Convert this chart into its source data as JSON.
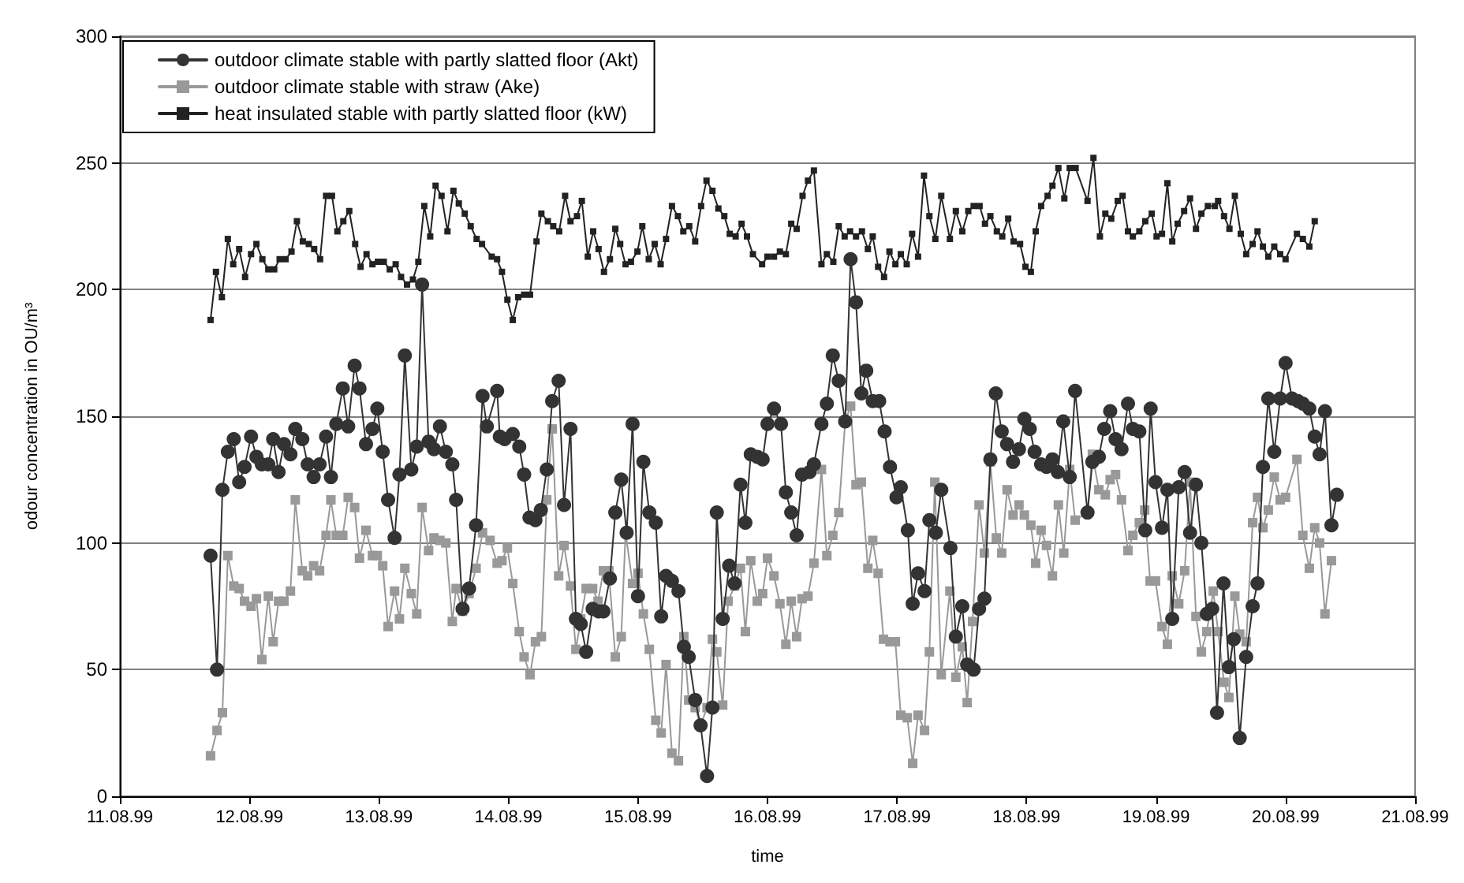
{
  "chart_data": {
    "type": "line",
    "xlabel": "time",
    "ylabel": "odour concentration in OU/m³",
    "xlim": [
      "1999-08-11",
      "1999-08-21"
    ],
    "xticks": [
      {
        "value": "1999-08-11",
        "label": "11.08.99"
      },
      {
        "value": "1999-08-12",
        "label": "12.08.99"
      },
      {
        "value": "1999-08-13",
        "label": "13.08.99"
      },
      {
        "value": "1999-08-14",
        "label": "14.08.99"
      },
      {
        "value": "1999-08-15",
        "label": "15.08.99"
      },
      {
        "value": "1999-08-16",
        "label": "16.08.99"
      },
      {
        "value": "1999-08-17",
        "label": "17.08.99"
      },
      {
        "value": "1999-08-18",
        "label": "18.08.99"
      },
      {
        "value": "1999-08-19",
        "label": "19.08.99"
      },
      {
        "value": "1999-08-20",
        "label": "20.08.99"
      },
      {
        "value": "1999-08-21",
        "label": "21.08.99"
      }
    ],
    "ylim": [
      0,
      300
    ],
    "yticks": [
      0,
      50,
      100,
      150,
      200,
      250,
      300
    ],
    "grid": "y",
    "legend": "top left",
    "series": [
      {
        "name": "outdoor climate stable with partly slatted floor (Akt)",
        "color": "#333333",
        "marker": "circle",
        "x": [
          "1999-08-11T16:48",
          "1999-08-11T18:00",
          "1999-08-11T19:00",
          "1999-08-11T20:00",
          "1999-08-11T21:06",
          "1999-08-11T22:06",
          "1999-08-11T23:06",
          "1999-08-12T00:18",
          "1999-08-12T01:18",
          "1999-08-12T02:18",
          "1999-08-12T03:30",
          "1999-08-12T04:24",
          "1999-08-12T05:24",
          "1999-08-12T06:24",
          "1999-08-12T07:36",
          "1999-08-12T08:30",
          "1999-08-12T09:48",
          "1999-08-12T10:48",
          "1999-08-12T11:54",
          "1999-08-12T13:00",
          "1999-08-12T14:12",
          "1999-08-12T15:06",
          "1999-08-12T16:06",
          "1999-08-12T17:18",
          "1999-08-12T18:18",
          "1999-08-12T19:30",
          "1999-08-12T20:24",
          "1999-08-12T21:36",
          "1999-08-12T22:48",
          "1999-08-12T23:42",
          "1999-08-13T00:42",
          "1999-08-13T01:42",
          "1999-08-13T02:54",
          "1999-08-13T03:48",
          "1999-08-13T04:48",
          "1999-08-13T06:00",
          "1999-08-13T07:00",
          "1999-08-13T08:00",
          "1999-08-13T09:12",
          "1999-08-13T10:12",
          "1999-08-13T11:18",
          "1999-08-13T12:24",
          "1999-08-13T13:36",
          "1999-08-13T14:18",
          "1999-08-13T15:30",
          "1999-08-13T16:42",
          "1999-08-13T18:00",
          "1999-08-13T19:12",
          "1999-08-13T20:00",
          "1999-08-13T21:54",
          "1999-08-13T22:24",
          "1999-08-13T23:18",
          "1999-08-14T00:48",
          "1999-08-14T02:00",
          "1999-08-14T02:54",
          "1999-08-14T03:54",
          "1999-08-14T05:00",
          "1999-08-14T06:00",
          "1999-08-14T07:06",
          "1999-08-14T08:06",
          "1999-08-14T09:18",
          "1999-08-14T10:18",
          "1999-08-14T11:30",
          "1999-08-14T12:30",
          "1999-08-14T13:24",
          "1999-08-14T14:24",
          "1999-08-14T15:36",
          "1999-08-14T16:42",
          "1999-08-14T17:36",
          "1999-08-14T18:48",
          "1999-08-14T19:48",
          "1999-08-14T20:54",
          "1999-08-14T21:54",
          "1999-08-14T23:00",
          "1999-08-15T00:00",
          "1999-08-15T01:00",
          "1999-08-15T02:06",
          "1999-08-15T03:18",
          "1999-08-15T04:18",
          "1999-08-15T05:12",
          "1999-08-15T06:18",
          "1999-08-15T07:30",
          "1999-08-15T08:30",
          "1999-08-15T09:24",
          "1999-08-15T10:36",
          "1999-08-15T11:36",
          "1999-08-15T12:48",
          "1999-08-15T13:48",
          "1999-08-15T14:36",
          "1999-08-15T15:42",
          "1999-08-15T16:54",
          "1999-08-15T17:54",
          "1999-08-15T19:00",
          "1999-08-15T19:54",
          "1999-08-15T20:54",
          "1999-08-15T22:06",
          "1999-08-15T23:06",
          "1999-08-16T00:00",
          "1999-08-16T01:12",
          "1999-08-16T02:30",
          "1999-08-16T03:24",
          "1999-08-16T04:24",
          "1999-08-16T05:24",
          "1999-08-16T06:24",
          "1999-08-16T07:48",
          "1999-08-16T08:36",
          "1999-08-16T10:00",
          "1999-08-16T11:00",
          "1999-08-16T12:06",
          "1999-08-16T13:12",
          "1999-08-16T14:24",
          "1999-08-16T15:24",
          "1999-08-16T16:24",
          "1999-08-16T17:24",
          "1999-08-16T18:18",
          "1999-08-16T19:30",
          "1999-08-16T20:42",
          "1999-08-16T21:42",
          "1999-08-16T22:42",
          "1999-08-16T23:54",
          "1999-08-17T00:42",
          "1999-08-17T02:00",
          "1999-08-17T02:54",
          "1999-08-17T03:54",
          "1999-08-17T05:06",
          "1999-08-17T06:00",
          "1999-08-17T07:12",
          "1999-08-17T08:12",
          "1999-08-17T09:54",
          "1999-08-17T10:54",
          "1999-08-17T12:06",
          "1999-08-17T13:00",
          "1999-08-17T14:12",
          "1999-08-17T15:12",
          "1999-08-17T16:12",
          "1999-08-17T17:18",
          "1999-08-17T18:18",
          "1999-08-17T19:24",
          "1999-08-17T20:24",
          "1999-08-17T21:30",
          "1999-08-17T22:36",
          "1999-08-17T23:36",
          "1999-08-18T00:36",
          "1999-08-18T01:30",
          "1999-08-18T02:42",
          "1999-08-18T03:42",
          "1999-08-18T04:48",
          "1999-08-18T05:48",
          "1999-08-18T06:48",
          "1999-08-18T08:00",
          "1999-08-18T09:00",
          "1999-08-18T11:18",
          "1999-08-18T12:12",
          "1999-08-18T13:24",
          "1999-08-18T14:24",
          "1999-08-18T15:30",
          "1999-08-18T16:30",
          "1999-08-18T17:36",
          "1999-08-18T18:48",
          "1999-08-18T19:42",
          "1999-08-18T20:54",
          "1999-08-18T22:00",
          "1999-08-18T23:00",
          "1999-08-18T23:54",
          "1999-08-19T01:06",
          "1999-08-19T02:06",
          "1999-08-19T03:00",
          "1999-08-19T04:12",
          "1999-08-19T05:18",
          "1999-08-19T06:18",
          "1999-08-19T07:24",
          "1999-08-19T08:24",
          "1999-08-19T09:24",
          "1999-08-19T10:24",
          "1999-08-19T11:18",
          "1999-08-19T12:30",
          "1999-08-19T13:30",
          "1999-08-19T14:24",
          "1999-08-19T15:30",
          "1999-08-19T16:42",
          "1999-08-19T17:54",
          "1999-08-19T18:48",
          "1999-08-19T19:48",
          "1999-08-19T20:48",
          "1999-08-19T21:54",
          "1999-08-19T23:00",
          "1999-08-20T00:00",
          "1999-08-20T01:12",
          "1999-08-20T02:18",
          "1999-08-20T03:12",
          "1999-08-20T04:24",
          "1999-08-20T05:24",
          "1999-08-20T06:18",
          "1999-08-20T07:18",
          "1999-08-20T08:30",
          "1999-08-20T09:30"
        ],
        "values": [
          95,
          50,
          121,
          136,
          141,
          124,
          130,
          142,
          134,
          131,
          131,
          141,
          128,
          139,
          135,
          145,
          141,
          131,
          126,
          131,
          142,
          126,
          147,
          161,
          146,
          170,
          161,
          139,
          145,
          153,
          136,
          117,
          102,
          127,
          174,
          129,
          138,
          202,
          140,
          137,
          146,
          136,
          131,
          117,
          74,
          82,
          107,
          158,
          146,
          160,
          142,
          141,
          143,
          138,
          127,
          110,
          109,
          113,
          129,
          156,
          164,
          115,
          145,
          70,
          68,
          57,
          74,
          73,
          73,
          86,
          112,
          125,
          104,
          147,
          79,
          132,
          112,
          108,
          71,
          87,
          85,
          81,
          59,
          55,
          38,
          28,
          8,
          35,
          112,
          70,
          91,
          84,
          123,
          108,
          135,
          134,
          133,
          147,
          153,
          147,
          120,
          112,
          103,
          127,
          128,
          131,
          147,
          155,
          174,
          164,
          148,
          212,
          195,
          159,
          168,
          156,
          156,
          144,
          130,
          118,
          122,
          105,
          76,
          88,
          81,
          109,
          104,
          121,
          98,
          63,
          75,
          52,
          50,
          74,
          78,
          133,
          159,
          144,
          139,
          132,
          137,
          149,
          145,
          136,
          131,
          130,
          133,
          128,
          148,
          126,
          160,
          112,
          132,
          134,
          145,
          152,
          141,
          137,
          155,
          145,
          144,
          105,
          153,
          124,
          106,
          121,
          70,
          122,
          128,
          104,
          123,
          100,
          72,
          74,
          33,
          84,
          51,
          62,
          23,
          55,
          75,
          84,
          130,
          157,
          136,
          157,
          171,
          157,
          156,
          155,
          153,
          142,
          135,
          152,
          107,
          119
        ]
      },
      {
        "name": "outdoor climate stable with straw (Ake)",
        "color": "#999999",
        "marker": "square",
        "x": [
          "1999-08-11T16:48",
          "1999-08-11T18:00",
          "1999-08-11T19:00",
          "1999-08-11T20:00",
          "1999-08-11T21:06",
          "1999-08-11T22:06",
          "1999-08-11T23:06",
          "1999-08-12T00:18",
          "1999-08-12T01:18",
          "1999-08-12T02:18",
          "1999-08-12T03:30",
          "1999-08-12T04:24",
          "1999-08-12T05:24",
          "1999-08-12T06:24",
          "1999-08-12T07:36",
          "1999-08-12T08:30",
          "1999-08-12T09:48",
          "1999-08-12T10:48",
          "1999-08-12T11:54",
          "1999-08-12T13:00",
          "1999-08-12T14:12",
          "1999-08-12T15:06",
          "1999-08-12T16:06",
          "1999-08-12T17:18",
          "1999-08-12T18:18",
          "1999-08-12T19:30",
          "1999-08-12T20:24",
          "1999-08-12T21:36",
          "1999-08-12T22:48",
          "1999-08-12T23:42",
          "1999-08-13T00:42",
          "1999-08-13T01:42",
          "1999-08-13T02:54",
          "1999-08-13T03:48",
          "1999-08-13T04:48",
          "1999-08-13T06:00",
          "1999-08-13T07:00",
          "1999-08-13T08:00",
          "1999-08-13T09:12",
          "1999-08-13T10:12",
          "1999-08-13T11:18",
          "1999-08-13T12:24",
          "1999-08-13T13:36",
          "1999-08-13T14:18",
          "1999-08-13T15:30",
          "1999-08-13T16:42",
          "1999-08-13T18:00",
          "1999-08-13T19:12",
          "1999-08-13T20:36",
          "1999-08-13T21:54",
          "1999-08-13T22:48",
          "1999-08-13T23:48",
          "1999-08-14T00:48",
          "1999-08-14T02:00",
          "1999-08-14T02:54",
          "1999-08-14T04:00",
          "1999-08-14T05:00",
          "1999-08-14T06:06",
          "1999-08-14T07:06",
          "1999-08-14T08:06",
          "1999-08-14T09:18",
          "1999-08-14T10:18",
          "1999-08-14T11:30",
          "1999-08-14T12:30",
          "1999-08-14T13:24",
          "1999-08-14T14:24",
          "1999-08-14T15:36",
          "1999-08-14T16:36",
          "1999-08-14T17:36",
          "1999-08-14T18:36",
          "1999-08-14T19:48",
          "1999-08-14T20:54",
          "1999-08-14T21:42",
          "1999-08-14T23:00",
          "1999-08-15T00:00",
          "1999-08-15T01:00",
          "1999-08-15T02:06",
          "1999-08-15T03:18",
          "1999-08-15T04:18",
          "1999-08-15T05:12",
          "1999-08-15T06:18",
          "1999-08-15T07:30",
          "1999-08-15T08:30",
          "1999-08-15T09:24",
          "1999-08-15T10:36",
          "1999-08-15T11:36",
          "1999-08-15T12:48",
          "1999-08-15T13:48",
          "1999-08-15T14:36",
          "1999-08-15T15:42",
          "1999-08-15T16:42",
          "1999-08-15T17:54",
          "1999-08-15T19:00",
          "1999-08-15T19:54",
          "1999-08-15T20:54",
          "1999-08-15T22:06",
          "1999-08-15T23:06",
          "1999-08-16T00:00",
          "1999-08-16T01:12",
          "1999-08-16T02:18",
          "1999-08-16T03:24",
          "1999-08-16T04:24",
          "1999-08-16T05:24",
          "1999-08-16T06:24",
          "1999-08-16T07:30",
          "1999-08-16T08:36",
          "1999-08-16T10:00",
          "1999-08-16T11:00",
          "1999-08-16T12:06",
          "1999-08-16T13:12",
          "1999-08-16T14:24",
          "1999-08-16T15:24",
          "1999-08-16T16:24",
          "1999-08-16T17:24",
          "1999-08-16T18:36",
          "1999-08-16T19:30",
          "1999-08-16T20:30",
          "1999-08-16T21:30",
          "1999-08-16T22:42",
          "1999-08-16T23:42",
          "1999-08-17T00:42",
          "1999-08-17T01:54",
          "1999-08-17T02:54",
          "1999-08-17T03:54",
          "1999-08-17T05:06",
          "1999-08-17T06:00",
          "1999-08-17T07:00",
          "1999-08-17T08:12",
          "1999-08-17T09:48",
          "1999-08-17T10:54",
          "1999-08-17T12:06",
          "1999-08-17T13:00",
          "1999-08-17T14:00",
          "1999-08-17T15:12",
          "1999-08-17T16:12",
          "1999-08-17T17:18",
          "1999-08-17T18:24",
          "1999-08-17T19:24",
          "1999-08-17T20:24",
          "1999-08-17T21:30",
          "1999-08-17T22:36",
          "1999-08-17T23:36",
          "1999-08-18T00:48",
          "1999-08-18T01:42",
          "1999-08-18T02:42",
          "1999-08-18T03:42",
          "1999-08-18T04:48",
          "1999-08-18T05:54",
          "1999-08-18T06:54",
          "1999-08-18T08:00",
          "1999-08-18T09:00",
          "1999-08-18T11:18",
          "1999-08-18T12:12",
          "1999-08-18T13:24",
          "1999-08-18T14:36",
          "1999-08-18T15:30",
          "1999-08-18T16:30",
          "1999-08-18T17:36",
          "1999-08-18T18:48",
          "1999-08-18T19:42",
          "1999-08-18T20:54",
          "1999-08-18T21:54",
          "1999-08-18T22:54",
          "1999-08-18T23:54",
          "1999-08-19T01:06",
          "1999-08-19T02:06",
          "1999-08-19T03:00",
          "1999-08-19T04:12",
          "1999-08-19T05:18",
          "1999-08-19T06:18",
          "1999-08-19T07:24",
          "1999-08-19T08:24",
          "1999-08-19T09:24",
          "1999-08-19T10:36",
          "1999-08-19T11:30",
          "1999-08-19T12:36",
          "1999-08-19T13:30",
          "1999-08-19T14:36",
          "1999-08-19T15:30",
          "1999-08-19T16:42",
          "1999-08-19T17:54",
          "1999-08-19T18:48",
          "1999-08-19T19:48",
          "1999-08-19T20:48",
          "1999-08-19T21:54",
          "1999-08-19T23:00",
          "1999-08-20T00:00",
          "1999-08-20T02:06",
          "1999-08-20T03:12",
          "1999-08-20T04:24",
          "1999-08-20T05:24",
          "1999-08-20T06:18",
          "1999-08-20T07:18",
          "1999-08-20T08:30"
        ],
        "values": [
          16,
          26,
          33,
          95,
          83,
          82,
          77,
          75,
          78,
          54,
          79,
          61,
          77,
          77,
          81,
          117,
          89,
          87,
          91,
          89,
          103,
          117,
          103,
          103,
          118,
          114,
          94,
          105,
          95,
          95,
          91,
          67,
          81,
          70,
          90,
          80,
          72,
          114,
          97,
          102,
          101,
          100,
          69,
          82,
          73,
          80,
          90,
          104,
          101,
          92,
          93,
          98,
          84,
          65,
          55,
          48,
          61,
          63,
          117,
          145,
          87,
          99,
          83,
          58,
          70,
          82,
          82,
          77,
          89,
          89,
          55,
          63,
          104,
          84,
          88,
          72,
          58,
          30,
          25,
          52,
          17,
          14,
          63,
          38,
          35,
          28,
          35,
          62,
          57,
          36,
          77,
          83,
          90,
          65,
          93,
          77,
          80,
          94,
          87,
          76,
          60,
          77,
          63,
          78,
          79,
          92,
          129,
          95,
          103,
          112,
          148,
          154,
          123,
          124,
          90,
          101,
          88,
          62,
          61,
          61,
          32,
          31,
          13,
          32,
          26,
          57,
          124,
          48,
          81,
          47,
          59,
          37,
          69,
          115,
          96,
          132,
          102,
          96,
          121,
          111,
          115,
          111,
          107,
          92,
          105,
          99,
          87,
          115,
          96,
          129,
          109,
          112,
          135,
          121,
          119,
          125,
          127,
          117,
          97,
          103,
          108,
          113,
          85,
          85,
          67,
          60,
          87,
          76,
          89,
          124,
          71,
          57,
          65,
          81,
          65,
          45,
          39,
          79,
          64,
          61,
          108,
          118,
          106,
          113,
          126,
          117,
          118,
          133,
          103,
          90,
          106,
          100,
          72,
          93
        ]
      },
      {
        "name": "heat insulated stable with partly slatted floor (kW)",
        "color": "#222222",
        "marker": "square",
        "x": [
          "1999-08-11T16:48",
          "1999-08-11T17:48",
          "1999-08-11T18:54",
          "1999-08-11T20:00",
          "1999-08-11T21:00",
          "1999-08-11T22:06",
          "1999-08-11T23:12",
          "1999-08-12T00:18",
          "1999-08-12T01:18",
          "1999-08-12T02:24",
          "1999-08-12T03:30",
          "1999-08-12T04:36",
          "1999-08-12T05:36",
          "1999-08-12T06:42",
          "1999-08-12T07:48",
          "1999-08-12T08:48",
          "1999-08-12T09:54",
          "1999-08-12T11:00",
          "1999-08-12T12:00",
          "1999-08-12T13:06",
          "1999-08-12T14:12",
          "1999-08-12T15:18",
          "1999-08-12T16:18",
          "1999-08-12T17:24",
          "1999-08-12T18:30",
          "1999-08-12T19:36",
          "1999-08-12T20:36",
          "1999-08-12T21:42",
          "1999-08-12T22:48",
          "1999-08-12T23:48",
          "1999-08-13T00:54",
          "1999-08-13T02:00",
          "1999-08-13T03:06",
          "1999-08-13T04:06",
          "1999-08-13T05:12",
          "1999-08-13T06:18",
          "1999-08-13T07:18",
          "1999-08-13T08:24",
          "1999-08-13T09:30",
          "1999-08-13T10:30",
          "1999-08-13T11:36",
          "1999-08-13T12:42",
          "1999-08-13T13:48",
          "1999-08-13T14:48",
          "1999-08-13T15:54",
          "1999-08-13T17:00",
          "1999-08-13T18:06",
          "1999-08-13T19:06",
          "1999-08-13T20:54",
          "1999-08-13T21:54",
          "1999-08-13T22:48",
          "1999-08-13T23:48",
          "1999-08-14T00:48",
          "1999-08-14T01:48",
          "1999-08-14T02:54",
          "1999-08-14T04:00",
          "1999-08-14T05:12",
          "1999-08-14T06:06",
          "1999-08-14T07:18",
          "1999-08-14T08:18",
          "1999-08-14T09:24",
          "1999-08-14T10:30",
          "1999-08-14T11:30",
          "1999-08-14T12:42",
          "1999-08-14T13:36",
          "1999-08-14T14:42",
          "1999-08-14T15:42",
          "1999-08-14T16:42",
          "1999-08-14T17:42",
          "1999-08-14T18:48",
          "1999-08-14T19:48",
          "1999-08-14T20:42",
          "1999-08-14T21:42",
          "1999-08-14T22:42",
          "1999-08-14T23:54",
          "1999-08-15T00:48",
          "1999-08-15T02:00",
          "1999-08-15T03:06",
          "1999-08-15T04:12",
          "1999-08-15T05:12",
          "1999-08-15T06:18",
          "1999-08-15T07:24",
          "1999-08-15T08:24",
          "1999-08-15T09:30",
          "1999-08-15T10:36",
          "1999-08-15T11:42",
          "1999-08-15T12:42",
          "1999-08-15T13:48",
          "1999-08-15T14:54",
          "1999-08-15T16:00",
          "1999-08-15T17:00",
          "1999-08-15T18:06",
          "1999-08-15T19:12",
          "1999-08-15T20:12",
          "1999-08-15T21:18",
          "1999-08-15T23:00",
          "1999-08-16T00:00",
          "1999-08-16T01:12",
          "1999-08-16T02:18",
          "1999-08-16T03:24",
          "1999-08-16T04:24",
          "1999-08-16T05:24",
          "1999-08-16T06:30",
          "1999-08-16T07:30",
          "1999-08-16T08:36",
          "1999-08-16T10:00",
          "1999-08-16T11:00",
          "1999-08-16T12:12",
          "1999-08-16T13:12",
          "1999-08-16T14:18",
          "1999-08-16T15:18",
          "1999-08-16T16:24",
          "1999-08-16T17:30",
          "1999-08-16T18:36",
          "1999-08-16T19:30",
          "1999-08-16T20:30",
          "1999-08-16T21:36",
          "1999-08-16T22:36",
          "1999-08-16T23:42",
          "1999-08-17T00:42",
          "1999-08-17T01:48",
          "1999-08-17T02:48",
          "1999-08-17T03:54",
          "1999-08-17T05:00",
          "1999-08-17T06:00",
          "1999-08-17T07:06",
          "1999-08-17T08:12",
          "1999-08-17T09:48",
          "1999-08-17T10:54",
          "1999-08-17T12:06",
          "1999-08-17T13:12",
          "1999-08-17T14:12",
          "1999-08-17T15:18",
          "1999-08-17T16:18",
          "1999-08-17T17:18",
          "1999-08-17T18:30",
          "1999-08-17T19:30",
          "1999-08-17T20:36",
          "1999-08-17T21:36",
          "1999-08-17T22:48",
          "1999-08-17T23:48",
          "1999-08-18T00:48",
          "1999-08-18T01:42",
          "1999-08-18T02:42",
          "1999-08-18T03:54",
          "1999-08-18T04:48",
          "1999-08-18T05:54",
          "1999-08-18T07:00",
          "1999-08-18T08:00",
          "1999-08-18T09:06",
          "1999-08-18T11:18",
          "1999-08-18T12:24",
          "1999-08-18T13:36",
          "1999-08-18T14:36",
          "1999-08-18T15:42",
          "1999-08-18T16:54",
          "1999-08-18T17:48",
          "1999-08-18T18:48",
          "1999-08-18T19:42",
          "1999-08-18T20:54",
          "1999-08-18T22:00",
          "1999-08-18T23:12",
          "1999-08-19T00:06",
          "1999-08-19T01:06",
          "1999-08-19T02:06",
          "1999-08-19T03:00",
          "1999-08-19T04:00",
          "1999-08-19T05:12",
          "1999-08-19T06:18",
          "1999-08-19T07:24",
          "1999-08-19T08:24",
          "1999-08-19T09:36",
          "1999-08-19T10:54",
          "1999-08-19T11:30",
          "1999-08-19T12:36",
          "1999-08-19T13:36",
          "1999-08-19T14:36",
          "1999-08-19T15:42",
          "1999-08-19T16:42",
          "1999-08-19T17:54",
          "1999-08-19T18:48",
          "1999-08-19T19:48",
          "1999-08-19T20:48",
          "1999-08-19T21:54",
          "1999-08-19T23:00",
          "1999-08-20T00:00",
          "1999-08-20T02:06",
          "1999-08-20T03:12",
          "1999-08-20T04:24",
          "1999-08-20T05:24"
        ],
        "values": [
          188,
          207,
          197,
          220,
          210,
          216,
          205,
          214,
          218,
          212,
          208,
          208,
          212,
          212,
          215,
          227,
          219,
          218,
          216,
          212,
          237,
          237,
          223,
          227,
          231,
          218,
          209,
          214,
          210,
          211,
          211,
          208,
          210,
          205,
          202,
          204,
          211,
          233,
          221,
          241,
          237,
          223,
          239,
          234,
          230,
          225,
          220,
          218,
          213,
          212,
          207,
          196,
          188,
          197,
          198,
          198,
          219,
          230,
          227,
          225,
          223,
          237,
          227,
          229,
          235,
          213,
          223,
          216,
          207,
          212,
          224,
          218,
          210,
          211,
          215,
          225,
          212,
          218,
          210,
          220,
          233,
          229,
          223,
          225,
          219,
          233,
          243,
          239,
          232,
          229,
          222,
          221,
          226,
          221,
          214,
          210,
          213,
          213,
          215,
          214,
          226,
          224,
          237,
          243,
          247,
          210,
          214,
          211,
          225,
          221,
          223,
          221,
          223,
          216,
          221,
          209,
          205,
          215,
          210,
          214,
          210,
          222,
          213,
          245,
          229,
          220,
          237,
          220,
          231,
          223,
          231,
          233,
          233,
          226,
          229,
          223,
          221,
          228,
          219,
          218,
          209,
          207,
          223,
          233,
          237,
          241,
          248,
          236,
          248,
          248,
          235,
          252,
          221,
          230,
          228,
          235,
          237,
          223,
          221,
          223,
          227,
          230,
          221,
          222,
          242,
          219,
          226,
          231,
          236,
          224,
          230,
          233,
          233,
          235,
          229,
          224,
          237,
          222,
          214,
          218,
          223,
          217,
          213,
          217,
          214,
          212,
          222,
          220,
          217,
          227
        ]
      }
    ]
  }
}
